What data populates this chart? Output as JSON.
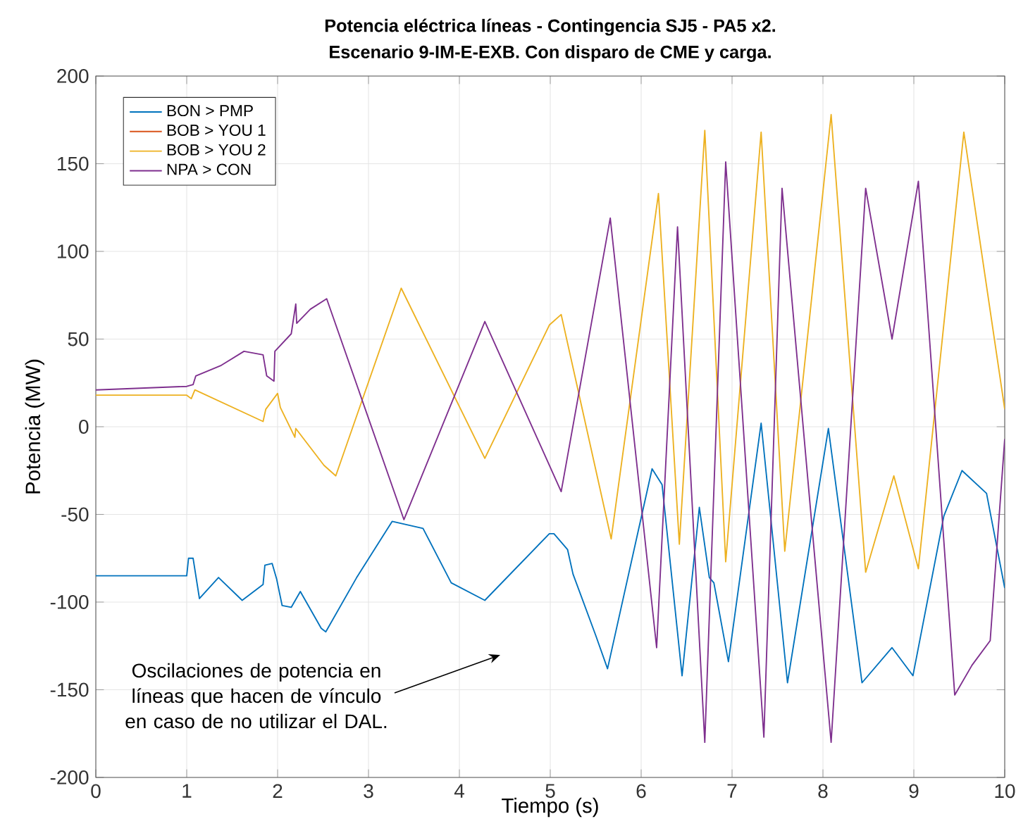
{
  "chart_data": {
    "type": "line",
    "title": "Potencia eléctrica líneas - Contingencia SJ5 - PA5 x2.",
    "subtitle": "Escenario 9-IM-E-EXB. Con disparo de CME y carga.",
    "xlabel": "Tiempo (s)",
    "ylabel": "Potencia (MW)",
    "xlim": [
      0,
      10
    ],
    "ylim": [
      -200,
      200
    ],
    "xticks": [
      0,
      1,
      2,
      3,
      4,
      5,
      6,
      7,
      8,
      9,
      10
    ],
    "yticks": [
      -200,
      -150,
      -100,
      -50,
      0,
      50,
      100,
      150,
      200
    ],
    "grid": true,
    "legend": "top left",
    "line_style": "solid",
    "marker": "none",
    "series": [
      {
        "name": "BON > PMP",
        "color": "#0072bd",
        "x": [
          0,
          1,
          1.02,
          1.07,
          1.14,
          1.35,
          1.61,
          1.84,
          1.86,
          1.94,
          1.99,
          2.05,
          2.15,
          2.25,
          2.48,
          2.53,
          2.87,
          3.26,
          3.6,
          3.91,
          4.28,
          4.99,
          5.04,
          5.19,
          5.25,
          5.5,
          5.63,
          6.12,
          6.23,
          6.45,
          6.64,
          6.75,
          6.8,
          6.96,
          7.32,
          7.61,
          8.06,
          8.43,
          8.76,
          8.99,
          9.33,
          9.53,
          9.8,
          10
        ],
        "values": [
          -85,
          -85,
          -75,
          -75,
          -98,
          -86,
          -99,
          -90,
          -79,
          -78,
          -87,
          -102,
          -103,
          -94,
          -115,
          -117,
          -86,
          -54,
          -58,
          -89,
          -99,
          -61,
          -61,
          -70,
          -84,
          -119,
          -138,
          -24,
          -33,
          -142,
          -46,
          -86,
          -89,
          -134,
          2,
          -146,
          -1,
          -146,
          -126,
          -142,
          -51,
          -25,
          -38,
          -92
        ]
      },
      {
        "name": "BOB > YOU 1",
        "color": "#d95319"
      },
      {
        "name": "BOB > YOU 2",
        "color": "#edb120",
        "x": [
          0,
          1,
          1.05,
          1.09,
          1.84,
          1.87,
          2.0,
          2.03,
          2.19,
          2.2,
          2.51,
          2.64,
          3.36,
          4.28,
          4.99,
          5.12,
          5.67,
          6.19,
          6.42,
          6.7,
          6.93,
          7.32,
          7.58,
          8.09,
          8.47,
          8.78,
          9.05,
          9.55,
          10
        ],
        "values": [
          18,
          18,
          16,
          21,
          3,
          10,
          19,
          11,
          -6,
          -1,
          -22,
          -28,
          79,
          -18,
          58,
          64,
          -64,
          133,
          -67,
          169,
          -77,
          168,
          -71,
          178,
          -83,
          -28,
          -81,
          168,
          10
        ]
      },
      {
        "name": "NPA > CON",
        "color": "#7e2f8e",
        "x": [
          0,
          1,
          1.07,
          1.1,
          1.38,
          1.63,
          1.84,
          1.88,
          1.96,
          1.97,
          2.15,
          2.2,
          2.21,
          2.36,
          2.54,
          3.39,
          4.28,
          5.12,
          5.66,
          6.17,
          6.4,
          6.7,
          6.93,
          7.35,
          7.55,
          8.09,
          8.47,
          8.76,
          9.05,
          9.45,
          9.64,
          9.84,
          10
        ],
        "values": [
          21,
          23,
          24,
          29,
          35,
          43,
          41,
          29,
          26,
          43,
          53,
          70,
          59,
          67,
          73,
          -53,
          60,
          -37,
          119,
          -126,
          114,
          -180,
          151,
          -177,
          136,
          -180,
          136,
          50,
          140,
          -153,
          -136,
          -122,
          -7
        ]
      }
    ],
    "annotations": [
      "Oscilaciones de potencia en líneas que hacen de vínculo en caso de no utilizar el DAL."
    ]
  }
}
